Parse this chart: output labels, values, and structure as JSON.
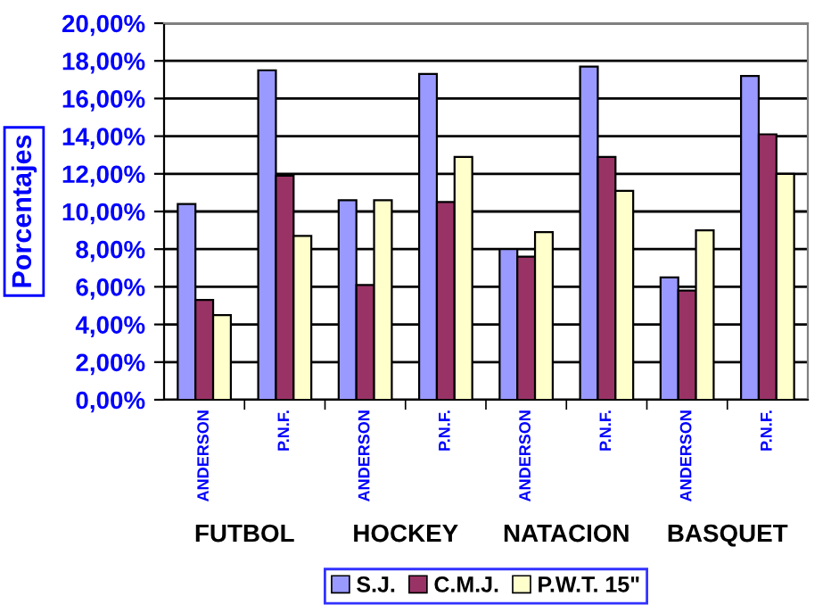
{
  "chart_data": {
    "type": "bar",
    "ylabel": "Porcentajes",
    "categories": [
      "ANDERSON",
      "P.N.F.",
      "ANDERSON",
      "P.N.F.",
      "ANDERSON",
      "P.N.F.",
      "ANDERSON",
      "P.N.F."
    ],
    "series": [
      {
        "name": "S.J.",
        "color": "#9999ff",
        "values": [
          10.4,
          17.5,
          10.6,
          17.3,
          8.0,
          17.7,
          6.5,
          17.2
        ]
      },
      {
        "name": "C.M.J.",
        "color": "#993366",
        "values": [
          5.3,
          11.9,
          6.1,
          10.5,
          7.6,
          12.9,
          5.8,
          14.1
        ]
      },
      {
        "name": "P.W.T. 15\"",
        "color": "#ffffcc",
        "values": [
          4.5,
          8.7,
          10.6,
          12.9,
          8.9,
          11.1,
          9.0,
          12.0
        ]
      }
    ],
    "annotations": [
      "FUTBOL",
      "HOCKEY",
      "NATACION",
      "BASQUET"
    ],
    "ylim": [
      0,
      20
    ],
    "yticks": [
      {
        "value": 0,
        "label": "0,00%"
      },
      {
        "value": 2,
        "label": "2,00%"
      },
      {
        "value": 4,
        "label": "4,00%"
      },
      {
        "value": 6,
        "label": "6,00%"
      },
      {
        "value": 8,
        "label": "8,00%"
      },
      {
        "value": 10,
        "label": "10,00%"
      },
      {
        "value": 12,
        "label": "12,00%"
      },
      {
        "value": 14,
        "label": "14,00%"
      },
      {
        "value": 16,
        "label": "16,00%"
      },
      {
        "value": 18,
        "label": "18,00%"
      },
      {
        "value": 20,
        "label": "20,00%"
      }
    ],
    "grid": "y",
    "legend": "bottom"
  }
}
